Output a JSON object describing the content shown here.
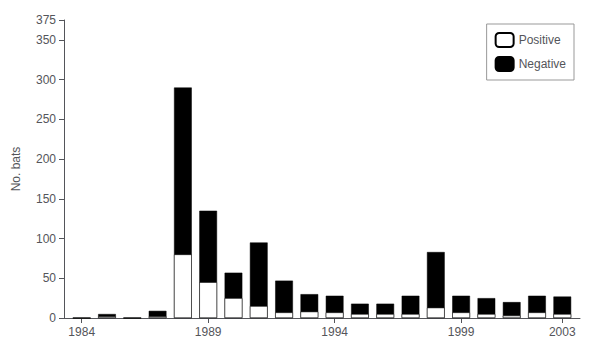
{
  "chart_data": {
    "type": "bar",
    "stacked": true,
    "ylabel": "No. bats",
    "x": [
      1984,
      1985,
      1986,
      1987,
      1988,
      1989,
      1990,
      1991,
      1992,
      1993,
      1994,
      1995,
      1996,
      1997,
      1998,
      1999,
      2000,
      2001,
      2002,
      2003
    ],
    "series": [
      {
        "name": "Negative",
        "color": "#000000",
        "values": [
          0,
          5,
          0,
          9,
          290,
          135,
          57,
          95,
          47,
          30,
          28,
          18,
          18,
          28,
          83,
          28,
          25,
          20,
          28,
          27
        ]
      },
      {
        "name": "Positive",
        "color": "#ffffff",
        "values": [
          0,
          2,
          0,
          2,
          80,
          45,
          25,
          15,
          7,
          8,
          7,
          5,
          5,
          5,
          13,
          7,
          5,
          3,
          7,
          5
        ]
      }
    ],
    "xlim": [
      1983.3,
      2003.7
    ],
    "xticks": [
      1984,
      1989,
      1994,
      1999,
      2003
    ],
    "ylim": [
      0,
      375
    ],
    "yticks": [
      0,
      50,
      100,
      150,
      200,
      250,
      300,
      350
    ],
    "grid": false,
    "legend": "upper right"
  }
}
